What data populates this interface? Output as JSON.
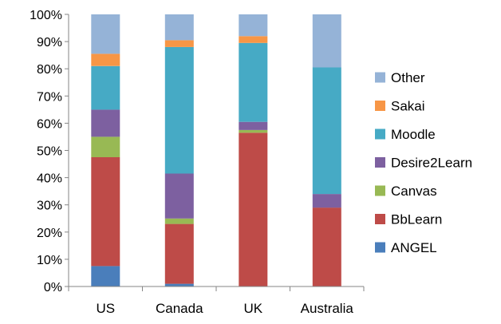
{
  "chart_data": {
    "type": "bar",
    "stacked": true,
    "percent": true,
    "categories": [
      "US",
      "Canada",
      "UK",
      "Australia"
    ],
    "series": [
      {
        "name": "ANGEL",
        "color": "#4a7ebb",
        "values": [
          7.5,
          1,
          0,
          0
        ]
      },
      {
        "name": "BbLearn",
        "color": "#be4b48",
        "values": [
          40,
          22,
          56.5,
          29
        ]
      },
      {
        "name": "Canvas",
        "color": "#98b954",
        "values": [
          7.5,
          2,
          1,
          0
        ]
      },
      {
        "name": "Desire2Learn",
        "color": "#7d60a0",
        "values": [
          10,
          16.5,
          3,
          5
        ]
      },
      {
        "name": "Moodle",
        "color": "#46aac5",
        "values": [
          16,
          46.5,
          29,
          46.5
        ]
      },
      {
        "name": "Sakai",
        "color": "#f79646",
        "values": [
          4.5,
          2.5,
          2.5,
          0
        ]
      },
      {
        "name": "Other",
        "color": "#95b3d7",
        "values": [
          14.5,
          9.5,
          8,
          19.5
        ]
      }
    ],
    "y_ticks": [
      "0%",
      "10%",
      "20%",
      "30%",
      "40%",
      "50%",
      "60%",
      "70%",
      "80%",
      "90%",
      "100%"
    ],
    "ylim": [
      0,
      100
    ],
    "grid": false,
    "legend_position": "right",
    "legend_order": [
      "Other",
      "Sakai",
      "Moodle",
      "Desire2Learn",
      "Canvas",
      "BbLearn",
      "ANGEL"
    ],
    "title": "",
    "xlabel": "",
    "ylabel": ""
  }
}
